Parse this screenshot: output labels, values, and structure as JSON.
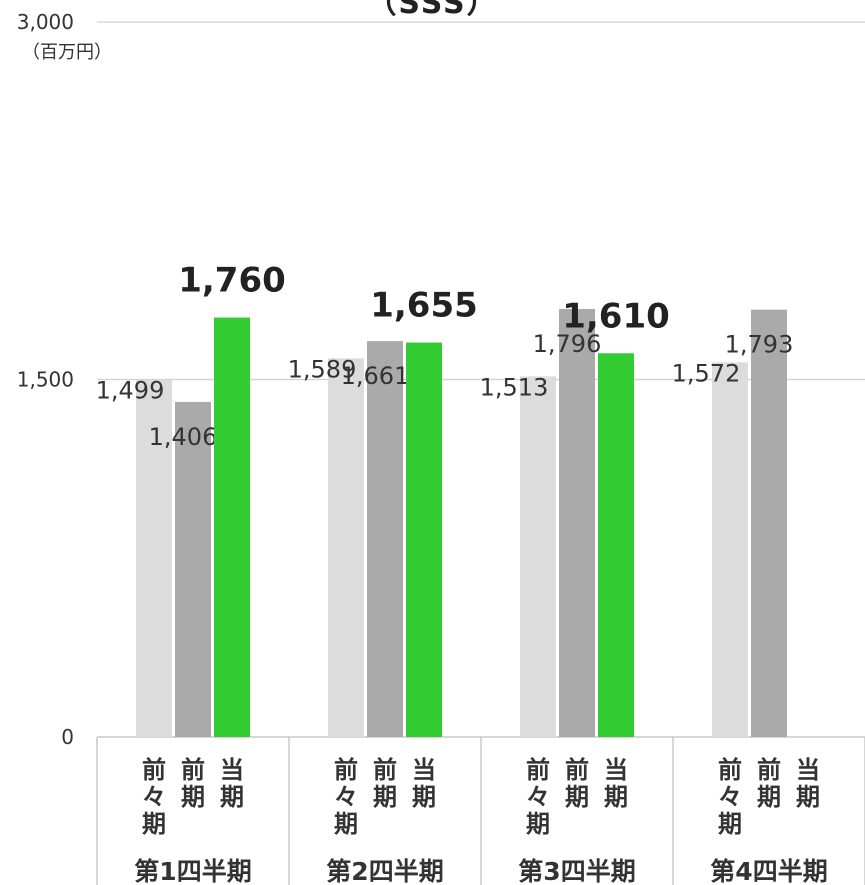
{
  "title": "（SSS）",
  "unit_label": "（百万円）",
  "chart_data": {
    "type": "bar",
    "title": "（SSS）",
    "ylabel": "（百万円）",
    "ylim": [
      0,
      3000
    ],
    "yticks": [
      0,
      1500,
      3000
    ],
    "ytick_labels": [
      "0",
      "1,500",
      "3,000"
    ],
    "grid": true,
    "categories": [
      "第1四半期",
      "第2四半期",
      "第3四半期",
      "第4四半期"
    ],
    "series": [
      {
        "name": "前々期",
        "values": [
          1499,
          1589,
          1513,
          1572
        ],
        "color": "#dcdcdc"
      },
      {
        "name": "前期",
        "values": [
          1406,
          1661,
          1796,
          1793
        ],
        "color": "#aaaaaa"
      },
      {
        "name": "当期",
        "values": [
          1760,
          1655,
          1610,
          null
        ],
        "color": "#33cc33"
      }
    ],
    "data_labels": [
      [
        "1,499",
        "1,589",
        "1,513",
        "1,572"
      ],
      [
        "1,406",
        "1,661",
        "1,796",
        "1,793"
      ],
      [
        "1,760",
        "1,655",
        "1,610",
        ""
      ]
    ]
  }
}
